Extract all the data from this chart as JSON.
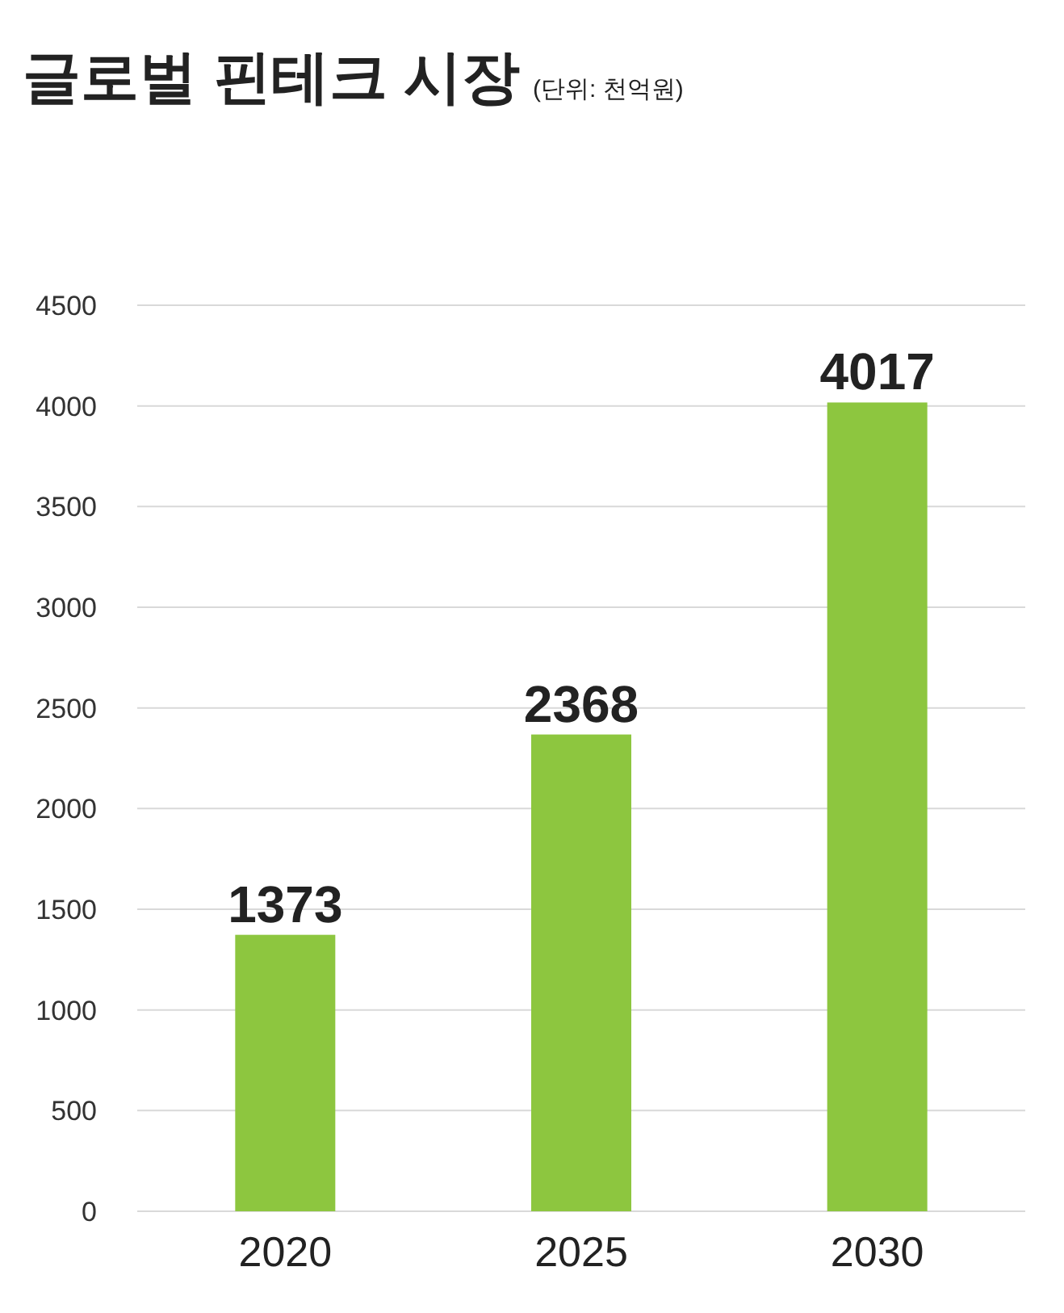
{
  "chart_data": {
    "type": "bar",
    "title": "글로벌 핀테크 시장",
    "subtitle": "(단위: 천억원)",
    "categories": [
      "2020",
      "2025",
      "2030"
    ],
    "values": [
      1373,
      2368,
      4017
    ],
    "color": "#8dc63f",
    "ylim": [
      0,
      4500
    ],
    "yticks": [
      0,
      500,
      1000,
      1500,
      2000,
      2500,
      3000,
      3500,
      4000,
      4500
    ],
    "grid": "y",
    "data_labels": true
  }
}
